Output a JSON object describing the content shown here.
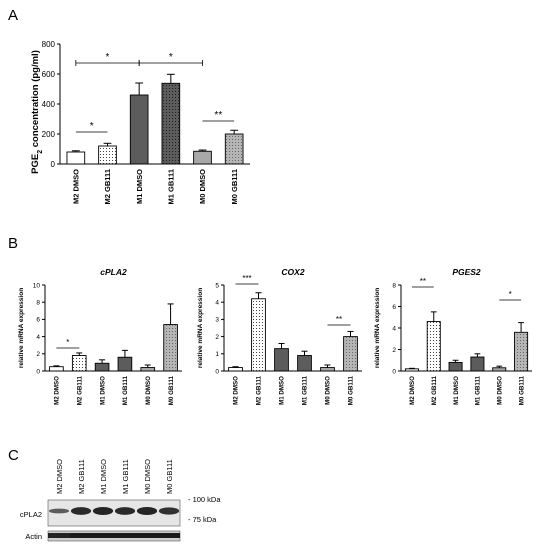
{
  "figure": {
    "panel_labels": [
      "A",
      "B",
      "C"
    ]
  },
  "colors": {
    "black": "#000000",
    "white": "#ffffff",
    "dark_gray": "#5c5c5c",
    "light_gray": "#a8a8a8",
    "blot_band": "#1a1a1a",
    "blot_bg": "#d8d8d8"
  },
  "chart_data": [
    {
      "panel": "A",
      "type": "bar",
      "title": "",
      "ylabel": "PGE2 concentration (pg/ml)",
      "ylabel_main": "PGE",
      "ylabel_sub": "2",
      "ylabel_rest": " concentration (pg/ml)",
      "ylim": [
        0,
        800
      ],
      "yticks": [
        0,
        200,
        400,
        600,
        800
      ],
      "categories": [
        "M2 DMSO",
        "M2 GB111",
        "M1 DMSO",
        "M1 GB111",
        "M0 DMSO",
        "M0 GB111"
      ],
      "values": [
        80,
        120,
        460,
        538,
        85,
        200
      ],
      "errors": [
        8,
        18,
        80,
        60,
        8,
        25
      ],
      "fills": [
        "white",
        "dotted",
        "dark",
        "dark-dotted",
        "light",
        "light-dotted"
      ],
      "significance": [
        {
          "from": 0,
          "to": 1,
          "label": "*"
        },
        {
          "from": 0,
          "to": 2,
          "label": "*"
        },
        {
          "from": 2,
          "to": 4,
          "label": "*"
        },
        {
          "from": 4,
          "to": 5,
          "label": "**"
        }
      ]
    },
    {
      "panel": "B",
      "type": "bar",
      "title": "cPLA2",
      "ylabel": "relative mRNA expression",
      "ylim": [
        0,
        10
      ],
      "yticks": [
        0,
        2,
        4,
        6,
        8,
        10
      ],
      "categories": [
        "M2 DMSO",
        "M2 GB111",
        "M1 DMSO",
        "M1 GB111",
        "M0 DMSO",
        "M0 GB111"
      ],
      "values": [
        0.5,
        1.8,
        0.9,
        1.6,
        0.4,
        5.4
      ],
      "errors": [
        0.1,
        0.3,
        0.4,
        0.8,
        0.3,
        2.4
      ],
      "fills": [
        "white",
        "dotted",
        "dark",
        "dark",
        "light",
        "light-dotted"
      ],
      "significance": [
        {
          "from": 0,
          "to": 1,
          "label": "*"
        }
      ]
    },
    {
      "panel": "B",
      "type": "bar",
      "title": "COX2",
      "ylabel": "relative mRNA expression",
      "ylim": [
        0,
        5
      ],
      "yticks": [
        0,
        1,
        2,
        3,
        4,
        5
      ],
      "categories": [
        "M2 DMSO",
        "M2 GB111",
        "M1 DMSO",
        "M1 GB111",
        "M0 DMSO",
        "M0 GB111"
      ],
      "values": [
        0.2,
        4.2,
        1.3,
        0.9,
        0.2,
        2.0
      ],
      "errors": [
        0.05,
        0.35,
        0.3,
        0.25,
        0.15,
        0.3
      ],
      "fills": [
        "white",
        "dotted",
        "dark",
        "dark",
        "light",
        "light-dotted"
      ],
      "significance": [
        {
          "from": 0,
          "to": 1,
          "label": "***"
        },
        {
          "from": 4,
          "to": 5,
          "label": "**"
        }
      ]
    },
    {
      "panel": "B",
      "type": "bar",
      "title": "PGES2",
      "ylabel": "relative mRNA expression",
      "ylim": [
        0,
        8
      ],
      "yticks": [
        0,
        2,
        4,
        6,
        8
      ],
      "categories": [
        "M2 DMSO",
        "M2 GB111",
        "M1 DMSO",
        "M1 GB111",
        "M0 DMSO",
        "M0 GB111"
      ],
      "values": [
        0.2,
        4.6,
        0.8,
        1.3,
        0.3,
        3.6
      ],
      "errors": [
        0.05,
        0.9,
        0.2,
        0.3,
        0.15,
        0.9
      ],
      "fills": [
        "white",
        "dotted",
        "dark",
        "dark",
        "light",
        "light-dotted"
      ],
      "significance": [
        {
          "from": 0,
          "to": 1,
          "label": "**"
        },
        {
          "from": 4,
          "to": 5,
          "label": "*"
        }
      ]
    }
  ],
  "blot": {
    "lanes": [
      "M2 DMSO",
      "M2 GB111",
      "M1 DMSO",
      "M1 GB111",
      "M0 DMSO",
      "M0 GB111"
    ],
    "rows": [
      {
        "label": "cPLA2",
        "intensities": [
          0.55,
          0.95,
          1.0,
          0.95,
          1.0,
          0.9
        ]
      },
      {
        "label": "Actin",
        "intensities": [
          0.9,
          0.95,
          0.95,
          0.95,
          0.95,
          0.95
        ]
      }
    ],
    "markers": [
      "- 100 kDa",
      "- 75 kDa"
    ]
  }
}
